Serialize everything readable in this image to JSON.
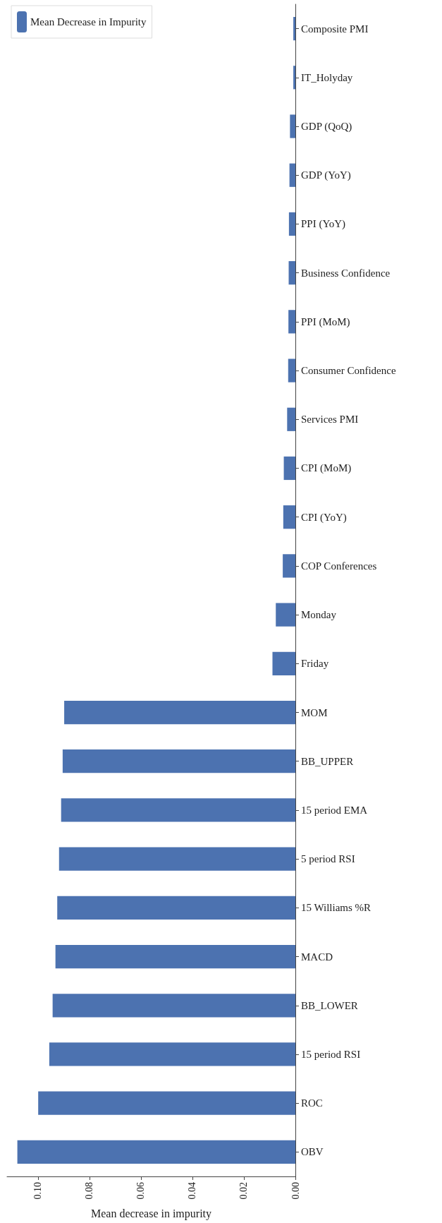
{
  "chart_data": {
    "type": "bar",
    "orientation": "horizontal",
    "xlabel": "Mean decrease in impurity",
    "categories": [
      "Composite PMI",
      "IT_Holyday",
      "GDP (QoQ)",
      "GDP (YoY)",
      "PPI (YoY)",
      "Business Confidence",
      "PPI (MoM)",
      "Consumer Confidence",
      "Services PMI",
      "CPI (MoM)",
      "CPI (YoY)",
      "COP Conferences",
      "Monday",
      "Friday",
      "MOM",
      "BB_UPPER",
      "15 period EMA",
      "5 period RSI",
      "15 Williams %R",
      "MACD",
      "BB_LOWER",
      "15 period RSI",
      "ROC",
      "OBV"
    ],
    "series": [
      {
        "name": "Mean Decrease in Impurity",
        "color": "#4c72b0",
        "values": [
          0.0008,
          0.0008,
          0.0021,
          0.0023,
          0.0025,
          0.0026,
          0.0027,
          0.0028,
          0.0032,
          0.0045,
          0.0047,
          0.0049,
          0.0076,
          0.0089,
          0.0898,
          0.0904,
          0.091,
          0.0918,
          0.0925,
          0.0932,
          0.0943,
          0.0956,
          0.0999,
          0.108
        ]
      }
    ],
    "xlim": [
      0.112,
      0
    ],
    "xticks": [
      {
        "value": 0,
        "label": "0.00"
      },
      {
        "value": 0.02,
        "label": "0.02"
      },
      {
        "value": 0.04,
        "label": "0.04"
      },
      {
        "value": 0.06,
        "label": "0.06"
      },
      {
        "value": 0.08,
        "label": "0.08"
      },
      {
        "value": 0.1,
        "label": "0.10"
      }
    ],
    "legend": "top left",
    "grid": false
  }
}
